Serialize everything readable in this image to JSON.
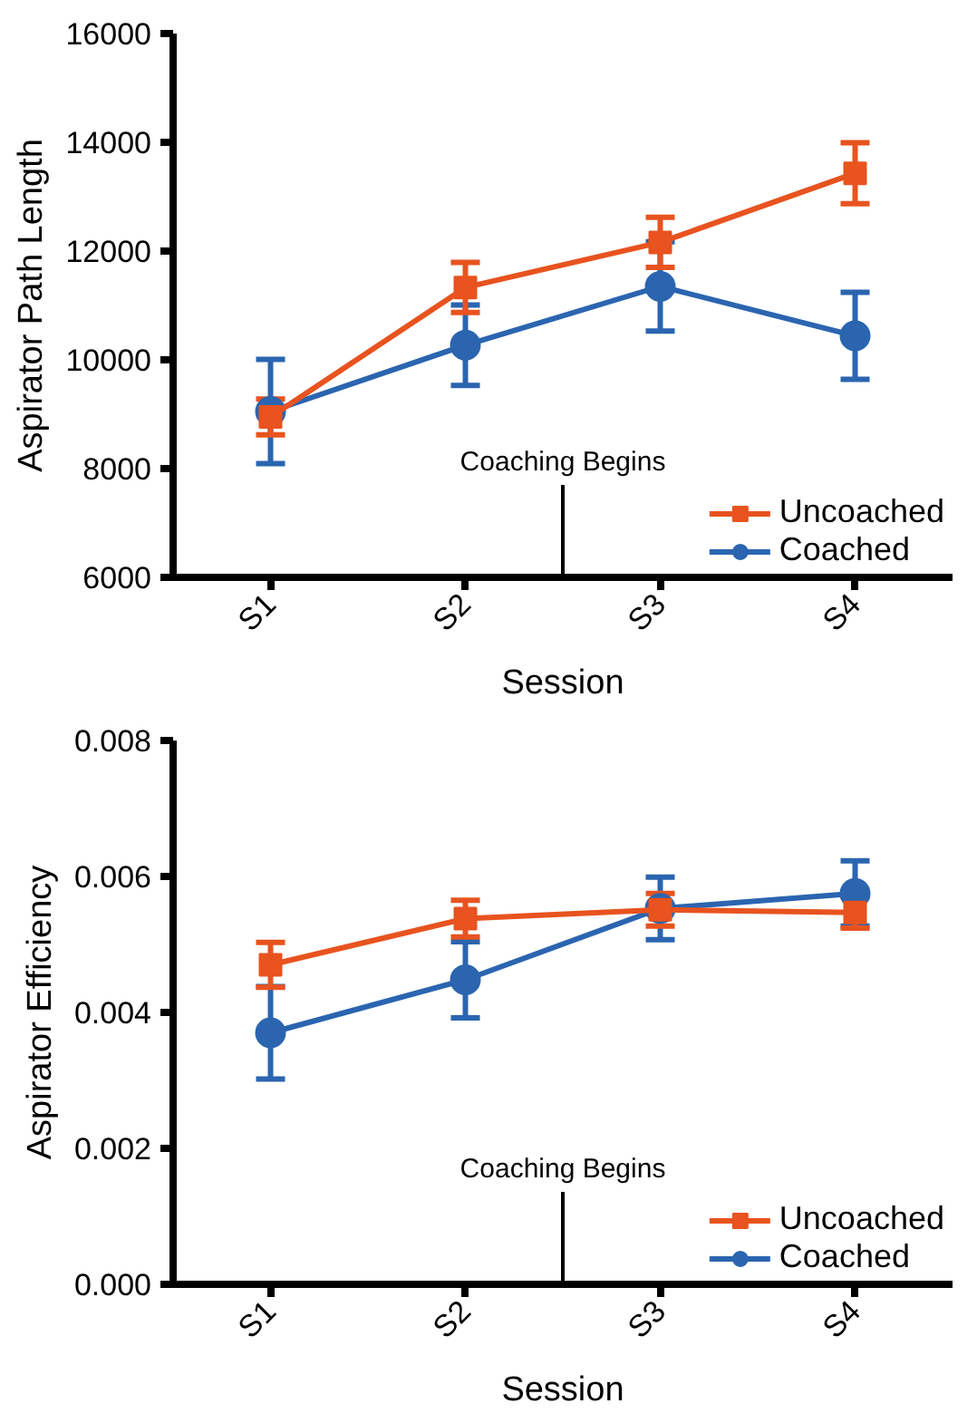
{
  "chart_data": [
    {
      "type": "line",
      "xlabel": "Session",
      "ylabel": "Aspirator Path Length",
      "categories": [
        "S1",
        "S2",
        "S3",
        "S4"
      ],
      "ylim": [
        6000,
        16000
      ],
      "yticks": [
        6000,
        8000,
        10000,
        12000,
        14000,
        16000
      ],
      "grid": false,
      "legend": "bottom right",
      "series": [
        {
          "name": "Uncoached",
          "color": "#e8531f",
          "marker": "square",
          "values": [
            8950,
            11330,
            12160,
            13430
          ],
          "errors": [
            330,
            460,
            460,
            560
          ]
        },
        {
          "name": "Coached",
          "color": "#2b65b0",
          "marker": "circle",
          "values": [
            9050,
            10270,
            11350,
            10440
          ],
          "errors": [
            960,
            740,
            820,
            800
          ]
        }
      ],
      "annotations": [
        "Coaching Begins"
      ]
    },
    {
      "type": "line",
      "xlabel": "Session",
      "ylabel": "Aspirator Efficiency",
      "categories": [
        "S1",
        "S2",
        "S3",
        "S4"
      ],
      "ylim": [
        0,
        0.008
      ],
      "yticks": [
        {
          "value": 0,
          "label": "0.000"
        },
        {
          "value": 0.002,
          "label": "0.002"
        },
        {
          "value": 0.004,
          "label": "0.004"
        },
        {
          "value": 0.006,
          "label": "0.006"
        },
        {
          "value": 0.008,
          "label": "0.008"
        }
      ],
      "grid": false,
      "legend": "bottom right",
      "series": [
        {
          "name": "Uncoached",
          "color": "#e8531f",
          "marker": "square",
          "values": [
            0.0047,
            0.00538,
            0.00551,
            0.00547
          ],
          "errors": [
            0.00033,
            0.00027,
            0.00024,
            0.00023
          ]
        },
        {
          "name": "Coached",
          "color": "#2b65b0",
          "marker": "circle",
          "values": [
            0.0037,
            0.00448,
            0.00553,
            0.00575
          ],
          "errors": [
            0.00068,
            0.00056,
            0.00046,
            0.00048
          ]
        }
      ],
      "annotations": [
        "Coaching Begins"
      ]
    }
  ]
}
